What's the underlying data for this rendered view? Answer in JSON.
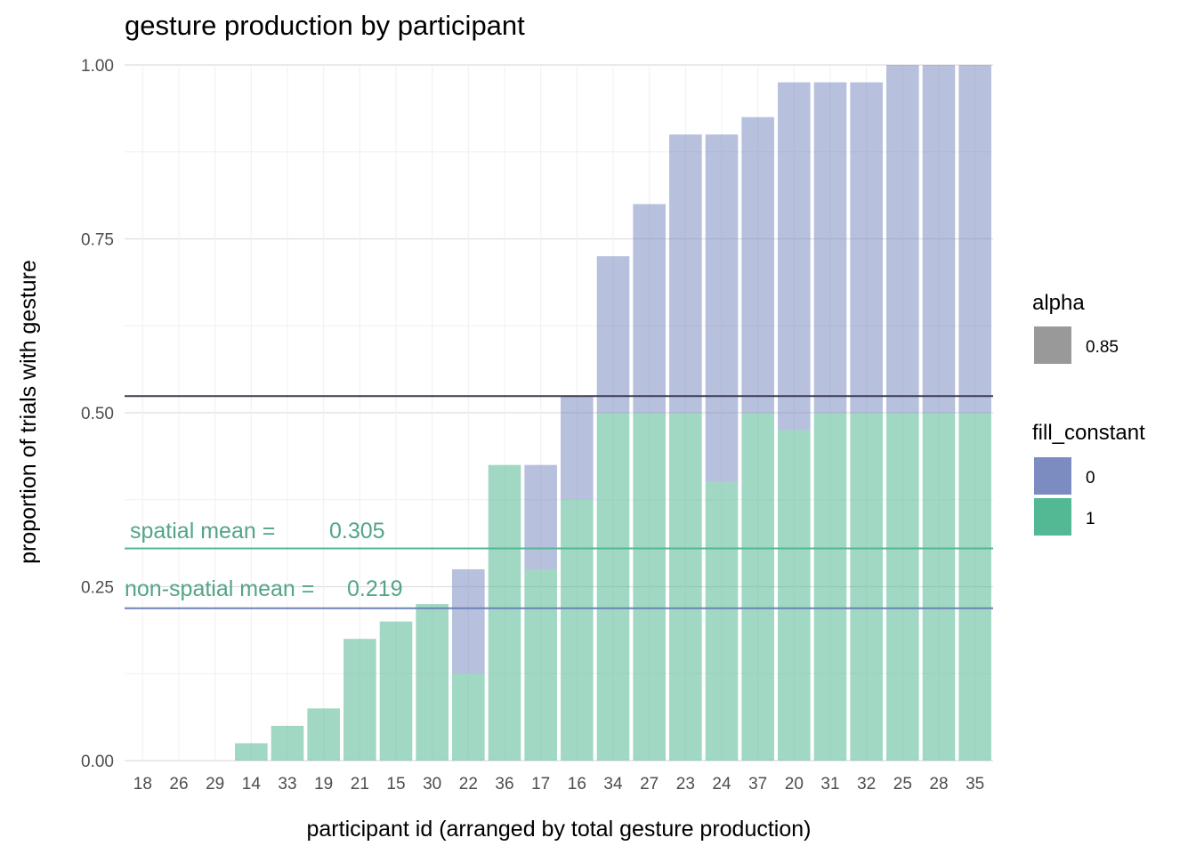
{
  "chart_data": {
    "type": "bar",
    "stacked": true,
    "title": "gesture production by participant",
    "xlabel": "participant id (arranged by total gesture production)",
    "ylabel": "proportion of trials with gesture",
    "ylim": [
      0,
      1
    ],
    "yticks": [
      "0.00",
      "0.25",
      "0.50",
      "0.75",
      "1.00"
    ],
    "grid": true,
    "categories": [
      "18",
      "26",
      "29",
      "14",
      "33",
      "19",
      "21",
      "15",
      "30",
      "22",
      "36",
      "17",
      "16",
      "34",
      "27",
      "23",
      "24",
      "37",
      "20",
      "31",
      "32",
      "25",
      "28",
      "35"
    ],
    "series": [
      {
        "name": "1",
        "color": "#53B894",
        "values": [
          0,
          0,
          0,
          0.025,
          0.05,
          0.075,
          0.175,
          0.2,
          0.225,
          0.125,
          0.425,
          0.275,
          0.375,
          0.5,
          0.5,
          0.5,
          0.4,
          0.5,
          0.475,
          0.5,
          0.5,
          0.5,
          0.5,
          0.5
        ]
      },
      {
        "name": "0",
        "color": "#7C8CC0",
        "values": [
          0,
          0,
          0,
          0,
          0,
          0,
          0,
          0,
          0,
          0.15,
          0,
          0.15,
          0.15,
          0.225,
          0.3,
          0.4,
          0.5,
          0.425,
          0.5,
          0.475,
          0.475,
          0.5,
          0.5,
          0.5
        ]
      }
    ],
    "bar_alpha": 0.85,
    "reference_lines": [
      {
        "value": 0.524,
        "color": "#3a3a52"
      },
      {
        "value": 0.305,
        "color": "#53B894",
        "label": "spatial mean =",
        "value_label": "0.305"
      },
      {
        "value": 0.219,
        "color": "#6B82B8",
        "label": "non-spatial mean =",
        "value_label": "0.219"
      }
    ],
    "legend": {
      "position": "right",
      "alpha": {
        "title": "alpha",
        "label": "0.85",
        "color": "#999999"
      },
      "fill": {
        "title": "fill_constant",
        "items": [
          {
            "label": "0",
            "color": "#7C8CC0"
          },
          {
            "label": "1",
            "color": "#53B894"
          }
        ]
      }
    }
  }
}
